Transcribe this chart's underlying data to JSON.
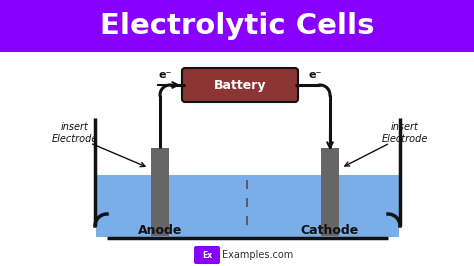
{
  "title": "Electrolytic Cells",
  "title_bg": "#8800FF",
  "title_color": "#FFFFFF",
  "bg_color": "#FFFFFF",
  "cell_border": "#111111",
  "liquid_color": "#7AAEE8",
  "liquid_alpha": 1.0,
  "electrode_color": "#666666",
  "battery_color": "#8B3535",
  "battery_text_color": "#FFFFFF",
  "wire_color": "#111111",
  "anode_label": "Anode",
  "cathode_label": "Cathode",
  "insert_label_left": "insert\nElectrode",
  "insert_label_right": "insert\nElectrode",
  "battery_label": "Battery",
  "electron_label": "e⁻",
  "dashed_line_color": "#555555",
  "watermark_ex_color": "#8800FF",
  "watermark_text": "Examples.com",
  "cell_lw": 2.5,
  "wire_lw": 2.2
}
